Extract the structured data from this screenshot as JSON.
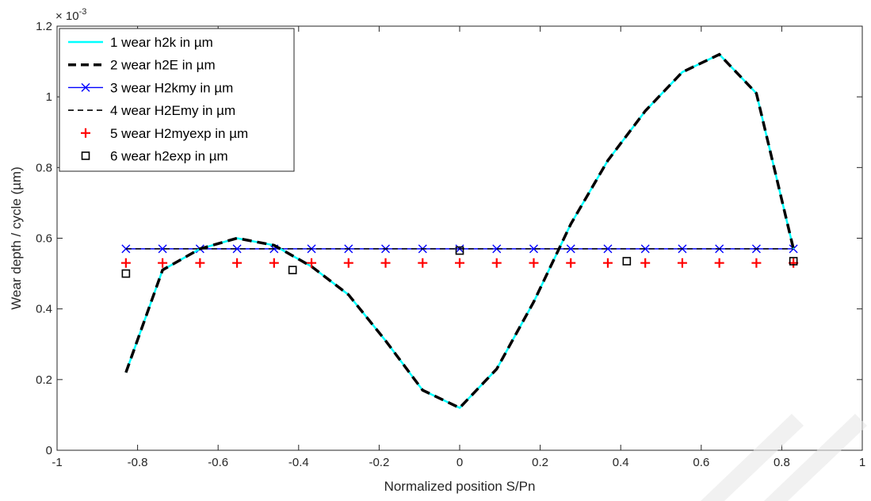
{
  "chart_data": {
    "type": "line",
    "title": "",
    "xlabel": "Normalized position S/Pn",
    "ylabel": "Wear depth / cycle (µm)",
    "y_exponent_label": "× 10",
    "y_exponent_power": "-3",
    "xlim": [
      -1,
      1
    ],
    "ylim": [
      0,
      1.2
    ],
    "xticks": [
      -1,
      -0.8,
      -0.6,
      -0.4,
      -0.2,
      0,
      0.2,
      0.4,
      0.6,
      0.8,
      1
    ],
    "xtick_labels": [
      "-1",
      "-0.8",
      "-0.6",
      "-0.4",
      "-0.2",
      "0",
      "0.2",
      "0.4",
      "0.6",
      "0.8",
      "1"
    ],
    "yticks": [
      0,
      0.2,
      0.4,
      0.6,
      0.8,
      1,
      1.2
    ],
    "ytick_labels": [
      "0",
      "0.2",
      "0.4",
      "0.6",
      "0.8",
      "1",
      "1.2"
    ],
    "grid": false,
    "legend_position": "top-left",
    "series": [
      {
        "name": "1 wear h2k in µm",
        "style": "solid-line",
        "color": "#00ffff",
        "x": [
          -0.829,
          -0.738,
          -0.645,
          -0.553,
          -0.461,
          -0.368,
          -0.276,
          -0.184,
          -0.092,
          0,
          0.092,
          0.184,
          0.276,
          0.368,
          0.461,
          0.553,
          0.645,
          0.737,
          0.829
        ],
        "y": [
          0.22,
          0.51,
          0.57,
          0.6,
          0.58,
          0.52,
          0.44,
          0.31,
          0.17,
          0.12,
          0.23,
          0.42,
          0.64,
          0.82,
          0.96,
          1.07,
          1.12,
          1.01,
          0.57
        ]
      },
      {
        "name": "2 wear h2E in µm",
        "style": "bold-dashed-line",
        "color": "#000000",
        "x": [
          -0.829,
          -0.738,
          -0.645,
          -0.553,
          -0.461,
          -0.368,
          -0.276,
          -0.184,
          -0.092,
          0,
          0.092,
          0.184,
          0.276,
          0.368,
          0.461,
          0.553,
          0.645,
          0.737,
          0.829
        ],
        "y": [
          0.22,
          0.51,
          0.57,
          0.6,
          0.58,
          0.52,
          0.44,
          0.31,
          0.17,
          0.12,
          0.23,
          0.42,
          0.64,
          0.82,
          0.96,
          1.07,
          1.12,
          1.01,
          0.57
        ]
      },
      {
        "name": "3 wear H2kmy in µm",
        "style": "line-with-x-markers",
        "color": "#0000ff",
        "x": [
          -0.829,
          -0.738,
          -0.645,
          -0.553,
          -0.461,
          -0.368,
          -0.276,
          -0.184,
          -0.092,
          0,
          0.092,
          0.184,
          0.276,
          0.368,
          0.461,
          0.553,
          0.645,
          0.737,
          0.829
        ],
        "y": [
          0.57,
          0.57,
          0.57,
          0.57,
          0.57,
          0.57,
          0.57,
          0.57,
          0.57,
          0.57,
          0.57,
          0.57,
          0.57,
          0.57,
          0.57,
          0.57,
          0.57,
          0.57,
          0.57
        ]
      },
      {
        "name": "4 wear H2Emy in µm",
        "style": "dashed-line",
        "color": "#000000",
        "x": [
          -0.829,
          0.829
        ],
        "y": [
          0.57,
          0.57
        ]
      },
      {
        "name": "5 wear H2myexp in µm",
        "style": "plus-markers",
        "color": "#ff0000",
        "x": [
          -0.829,
          -0.738,
          -0.645,
          -0.553,
          -0.461,
          -0.368,
          -0.276,
          -0.184,
          -0.092,
          0,
          0.092,
          0.184,
          0.276,
          0.368,
          0.461,
          0.553,
          0.645,
          0.737,
          0.829
        ],
        "y": [
          0.53,
          0.53,
          0.53,
          0.53,
          0.53,
          0.53,
          0.53,
          0.53,
          0.53,
          0.53,
          0.53,
          0.53,
          0.53,
          0.53,
          0.53,
          0.53,
          0.53,
          0.53,
          0.53
        ]
      },
      {
        "name": "6 wear h2exp in µm",
        "style": "square-markers",
        "color": "#000000",
        "x": [
          -0.829,
          -0.415,
          0,
          0.415,
          0.829
        ],
        "y": [
          0.5,
          0.51,
          0.565,
          0.535,
          0.535
        ]
      }
    ]
  }
}
